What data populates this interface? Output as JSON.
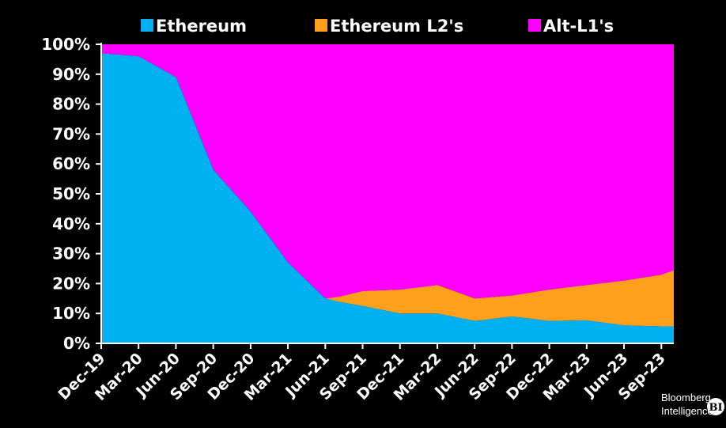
{
  "chart_data": {
    "type": "area",
    "stacked": true,
    "title": "",
    "xlabel": "",
    "ylabel": "",
    "ylim": [
      0,
      100
    ],
    "y_ticks": [
      "0%",
      "10%",
      "20%",
      "30%",
      "40%",
      "50%",
      "60%",
      "70%",
      "80%",
      "90%",
      "100%"
    ],
    "x_ticks": [
      "Dec-19",
      "Mar-20",
      "Jun-20",
      "Sep-20",
      "Dec-20",
      "Mar-21",
      "Jun-21",
      "Sep-21",
      "Dec-21",
      "Mar-22",
      "Jun-22",
      "Sep-22",
      "Dec-22",
      "Mar-23",
      "Jun-23",
      "Sep-23"
    ],
    "legend_position": "top",
    "grid": false,
    "x": [
      "2019-12",
      "2020-03",
      "2020-06",
      "2020-09",
      "2020-12",
      "2021-03",
      "2021-06",
      "2021-07",
      "2021-09",
      "2021-12",
      "2022-03",
      "2022-06",
      "2022-09",
      "2022-12",
      "2023-03",
      "2023-06",
      "2023-09",
      "2023-10"
    ],
    "series": [
      {
        "name": "Ethereum",
        "color": "#00b0f0",
        "values": [
          97,
          96,
          89,
          58,
          44,
          27,
          15,
          14,
          12.5,
          10,
          10,
          7.5,
          9,
          7.5,
          7.7,
          6,
          5.7,
          5.7
        ]
      },
      {
        "name": "Ethereum L2's",
        "color": "#ff9f1c",
        "values": [
          0,
          0,
          0,
          0,
          0,
          0,
          0,
          1.5,
          5,
          8,
          9.5,
          7.5,
          7,
          10.5,
          11.8,
          15,
          17.3,
          18.8
        ]
      },
      {
        "name": "Alt-L1's",
        "color": "#ff00ff",
        "values": [
          3,
          4,
          11,
          42,
          56,
          73,
          85,
          84.5,
          82.5,
          82,
          80.5,
          85,
          84,
          82,
          80.5,
          79,
          77,
          75.5
        ]
      }
    ]
  },
  "branding": {
    "line1": "Bloomberg",
    "line2": "Intelligence",
    "badge": "BI"
  }
}
